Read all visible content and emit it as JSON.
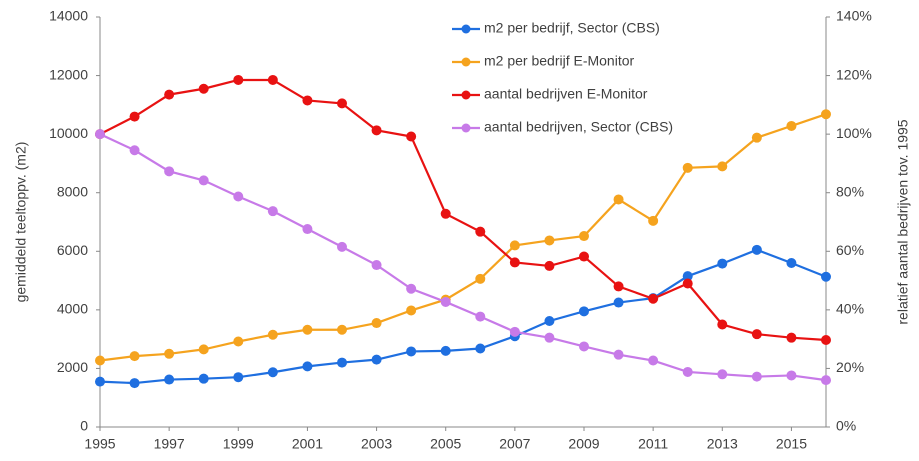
{
  "chart_data": {
    "type": "line",
    "ylabel": "gemiddeld teeltoppv. (m2)",
    "y2label": "relatief aantal bedrijven tov. 1995",
    "x": [
      1995,
      1996,
      1997,
      1998,
      1999,
      2000,
      2001,
      2002,
      2003,
      2004,
      2005,
      2006,
      2007,
      2008,
      2009,
      2010,
      2011,
      2012,
      2013,
      2014,
      2015,
      2016
    ],
    "xlim": [
      1995,
      2016
    ],
    "xticks": [
      1995,
      1997,
      1999,
      2001,
      2003,
      2005,
      2007,
      2009,
      2011,
      2013,
      2015
    ],
    "ylim": [
      0,
      14000
    ],
    "yticks": [
      0,
      2000,
      4000,
      6000,
      8000,
      10000,
      12000,
      14000
    ],
    "y2lim": [
      0,
      140
    ],
    "y2ticks": [
      {
        "value": 0,
        "label": "0%"
      },
      {
        "value": 20,
        "label": "20%"
      },
      {
        "value": 40,
        "label": "40%"
      },
      {
        "value": 60,
        "label": "60%"
      },
      {
        "value": 80,
        "label": "80%"
      },
      {
        "value": 100,
        "label": "100%"
      },
      {
        "value": 120,
        "label": "120%"
      },
      {
        "value": 140,
        "label": "140%"
      }
    ],
    "legend": "top-right",
    "series": [
      {
        "name": "m2 per bedrijf, Sector (CBS)",
        "color": "#1f6fe0",
        "values": [
          1550,
          1500,
          1620,
          1650,
          1700,
          1870,
          2070,
          2200,
          2300,
          2580,
          2600,
          2680,
          3100,
          3620,
          3950,
          4250,
          4400,
          5150,
          5580,
          6050,
          5600,
          5130
        ]
      },
      {
        "name": "m2 per bedrijf E-Monitor",
        "color": "#f5a31e",
        "values": [
          2270,
          2420,
          2500,
          2650,
          2920,
          3150,
          3320,
          3320,
          3550,
          3980,
          4350,
          5060,
          6200,
          6370,
          6520,
          7770,
          7040,
          8850,
          8900,
          9880,
          10280,
          10680
        ]
      },
      {
        "name": "aantal bedrijven E-Monitor",
        "color": "#e81212",
        "axis": "y2",
        "values": [
          100,
          106,
          113.5,
          115.5,
          118.5,
          118.5,
          111.5,
          110.5,
          101.3,
          99.2,
          72.8,
          66.7,
          56.2,
          55,
          58.2,
          48,
          43.8,
          49,
          35,
          31.7,
          30.5,
          29.7
        ]
      },
      {
        "name": "aantal bedrijven, Sector (CBS)",
        "color": "#c77ae8",
        "axis": "y2",
        "values": [
          100,
          94.5,
          87.3,
          84.2,
          78.7,
          73.7,
          67.6,
          61.5,
          55.3,
          47.2,
          42.7,
          37.7,
          32.5,
          30.5,
          27.5,
          24.7,
          22.7,
          18.8,
          18,
          17.2,
          17.6,
          16
        ]
      }
    ]
  }
}
